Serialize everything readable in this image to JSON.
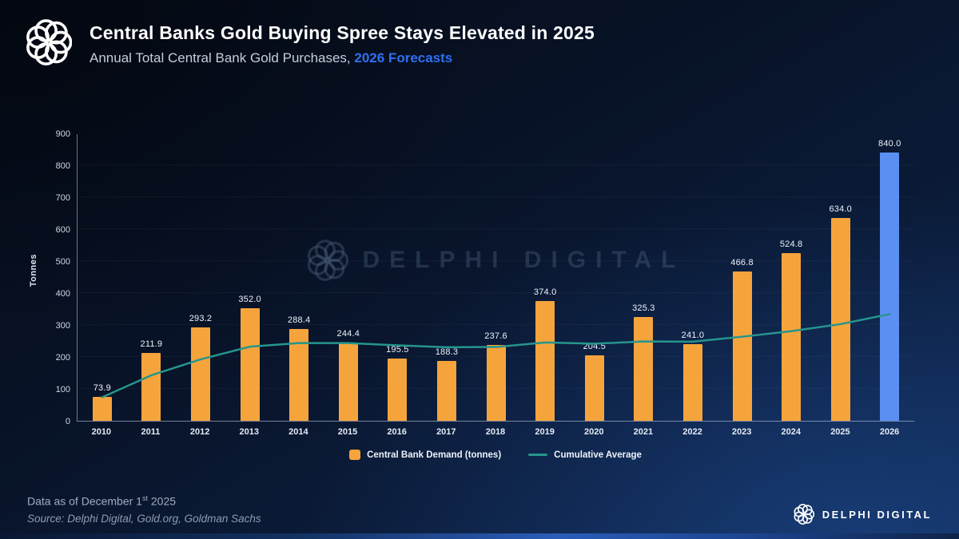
{
  "header": {
    "title": "Central Banks Gold Buying Spree Stays Elevated in 2025",
    "subtitle_plain": "Annual Total Central Bank Gold Purchases, ",
    "subtitle_highlight": "2026 Forecasts"
  },
  "chart_data": {
    "type": "bar",
    "title": "Annual Total Central Bank Gold Purchases, 2026 Forecasts",
    "xlabel": "",
    "ylabel": "Tonnes",
    "ylim": [
      0,
      900
    ],
    "yticks": [
      0,
      100,
      200,
      300,
      400,
      500,
      600,
      700,
      800,
      900
    ],
    "grid": false,
    "legend_position": "bottom",
    "categories": [
      "2010",
      "2011",
      "2012",
      "2013",
      "2014",
      "2015",
      "2016",
      "2017",
      "2018",
      "2019",
      "2020",
      "2021",
      "2022",
      "2023",
      "2024",
      "2025",
      "2026"
    ],
    "series": [
      {
        "name": "Central Bank Demand (tonnes)",
        "type": "bar",
        "color": "#F5A43C",
        "highlight_index": 16,
        "highlight_color": "#5B8FF2",
        "values": [
          73.9,
          211.9,
          293.2,
          352.0,
          288.4,
          244.4,
          195.5,
          188.3,
          237.6,
          374.0,
          204.5,
          325.3,
          241.0,
          466.8,
          524.8,
          634.0,
          840.0
        ]
      },
      {
        "name": "Cumulative Average",
        "type": "line",
        "color": "#26958D",
        "values": [
          73.9,
          142.9,
          193.0,
          232.8,
          243.9,
          244.0,
          237.0,
          231.0,
          231.7,
          245.9,
          242.2,
          249.1,
          248.5,
          264.1,
          281.4,
          303.5,
          335.0
        ]
      }
    ]
  },
  "watermark": {
    "text": "DELPHI DIGITAL"
  },
  "footer": {
    "note_prefix": "Data as of December 1",
    "note_sup": "st",
    "note_suffix": " 2025",
    "source": "Source: Delphi Digital, Gold.org, Goldman Sachs",
    "brand": "DELPHI DIGITAL"
  }
}
